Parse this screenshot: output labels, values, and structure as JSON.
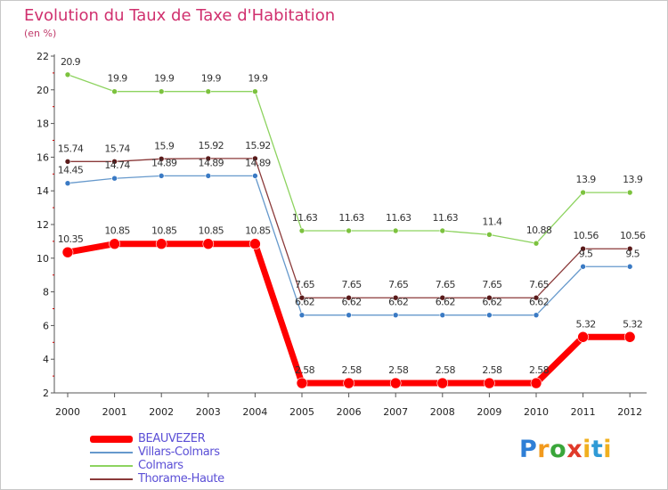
{
  "title": "Evolution du Taux de Taxe d'Habitation",
  "subtitle": "(en %)",
  "brand": {
    "letters": [
      "P",
      "r",
      "o",
      "x",
      "i",
      "t",
      "i"
    ],
    "colors": [
      "#2f7fd6",
      "#f29a1e",
      "#3aa63a",
      "#e03a2a",
      "#f0b020",
      "#2f9ad6",
      "#f0b020"
    ]
  },
  "chart_data": {
    "type": "line",
    "title": "Evolution du Taux de Taxe d'Habitation",
    "ylabel": "(en %)",
    "xlabel": "",
    "ylim": [
      2,
      22
    ],
    "yticks": [
      2,
      4,
      6,
      8,
      10,
      12,
      14,
      16,
      18,
      20,
      22
    ],
    "grid": "none",
    "legend_position": "bottom-left",
    "x": [
      "2000",
      "2001",
      "2002",
      "2003",
      "2004",
      "2005",
      "2006",
      "2007",
      "2008",
      "2009",
      "2010",
      "2011",
      "2012"
    ],
    "series": [
      {
        "name": "Colmars",
        "color": "#8dd35f",
        "values": [
          20.9,
          19.9,
          19.9,
          19.9,
          19.9,
          11.63,
          11.63,
          11.63,
          11.63,
          11.4,
          10.88,
          13.9,
          13.9
        ],
        "labels": [
          "20.9",
          "19.9",
          "19.9",
          "19.9",
          "19.9",
          "11.63",
          "11.63",
          "11.63",
          "11.63",
          "11.4",
          "10.88",
          "13.9",
          "13.9"
        ]
      },
      {
        "name": "Thorame-Haute",
        "color": "#8b3a3a",
        "values": [
          15.74,
          15.74,
          15.9,
          15.92,
          15.92,
          7.65,
          7.65,
          7.65,
          7.65,
          7.65,
          7.65,
          10.56,
          10.56
        ],
        "labels": [
          "15.74",
          "15.74",
          "15.9",
          "15.92",
          "15.92",
          "7.65",
          "7.65",
          "7.65",
          "7.65",
          "7.65",
          "7.65",
          "10.56",
          "10.56"
        ]
      },
      {
        "name": "Villars-Colmars",
        "color": "#6699cc",
        "values": [
          14.45,
          14.74,
          14.89,
          14.89,
          14.89,
          6.62,
          6.62,
          6.62,
          6.62,
          6.62,
          6.62,
          9.5,
          9.5
        ],
        "labels": [
          "14.45",
          "14.74",
          "14.89",
          "14.89",
          "14.89",
          "6.62",
          "6.62",
          "6.62",
          "6.62",
          "6.62",
          "6.62",
          "9.5",
          "9.5"
        ]
      },
      {
        "name": "BEAUVEZER",
        "color": "#ff0000",
        "values": [
          10.35,
          10.85,
          10.85,
          10.85,
          10.85,
          2.58,
          2.58,
          2.58,
          2.58,
          2.58,
          2.58,
          5.32,
          5.32
        ],
        "labels": [
          "10.35",
          "10.85",
          "10.85",
          "10.85",
          "10.85",
          "2.58",
          "2.58",
          "2.58",
          "2.58",
          "2.58",
          "2.58",
          "5.32",
          "5.32"
        ]
      }
    ],
    "legend": [
      "BEAUVEZER",
      "Villars-Colmars",
      "Colmars",
      "Thorame-Haute"
    ]
  }
}
